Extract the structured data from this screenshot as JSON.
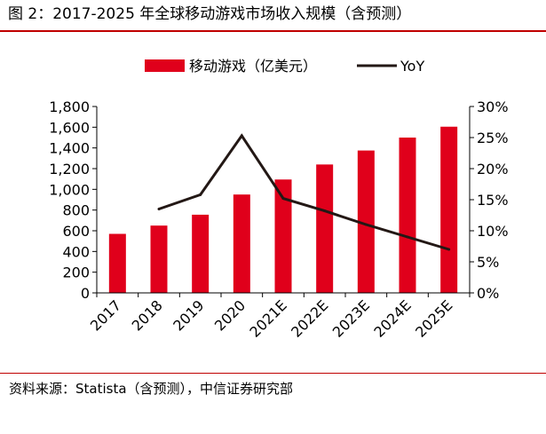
{
  "header": {
    "title": "图 2：2017-2025 年全球移动游戏市场收入规模（含预测）"
  },
  "footer": {
    "source": "资料来源：Statista（含预测），中信证券研究部"
  },
  "colors": {
    "bar": "#e0001b",
    "line": "#231815",
    "rule": "#c00000"
  },
  "chart_data": {
    "type": "bar",
    "categories": [
      "2017",
      "2018",
      "2019",
      "2020",
      "2021E",
      "2022E",
      "2023E",
      "2024E",
      "2025E"
    ],
    "series": [
      {
        "name": "移动游戏（亿美元）",
        "type": "bar",
        "axis": "left",
        "values": [
          570,
          650,
          755,
          950,
          1095,
          1240,
          1375,
          1500,
          1605
        ]
      },
      {
        "name": "YoY",
        "type": "line",
        "axis": "right",
        "values": [
          null,
          13.5,
          15.8,
          25.3,
          15.2,
          13.2,
          11.0,
          9.0,
          7.0
        ]
      }
    ],
    "ylim_left": [
      0,
      1800
    ],
    "yticks_left": [
      "0",
      "200",
      "400",
      "600",
      "800",
      "1,000",
      "1,200",
      "1,400",
      "1,600",
      "1,800"
    ],
    "ylim_right": [
      0,
      30
    ],
    "yticks_right": [
      "0%",
      "5%",
      "10%",
      "15%",
      "20%",
      "25%",
      "30%"
    ],
    "legend_position": "top",
    "grid": false
  }
}
